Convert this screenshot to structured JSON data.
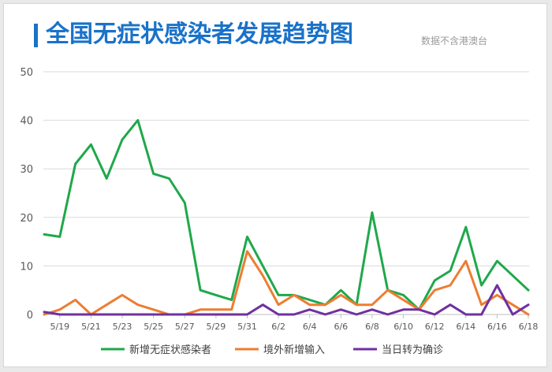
{
  "title": "全国无症状感染者发展趋势图",
  "note": "数据不含港澳台",
  "colors": {
    "accent": "#1a72c9",
    "green": "#1fa84a",
    "orange": "#ed7d31",
    "purple": "#7030a0",
    "grid": "#d9d9d9"
  },
  "chart_data": {
    "type": "line",
    "x": [
      "5/18",
      "5/19",
      "5/20",
      "5/21",
      "5/22",
      "5/23",
      "5/24",
      "5/25",
      "5/26",
      "5/27",
      "5/28",
      "5/29",
      "5/30",
      "5/31",
      "6/1",
      "6/2",
      "6/3",
      "6/4",
      "6/5",
      "6/6",
      "6/7",
      "6/8",
      "6/9",
      "6/10",
      "6/11",
      "6/12",
      "6/13",
      "6/14",
      "6/15",
      "6/16",
      "6/17",
      "6/18"
    ],
    "tick_labels": [
      "5/19",
      "5/21",
      "5/23",
      "5/25",
      "5/27",
      "5/29",
      "5/31",
      "6/2",
      "6/4",
      "6/6",
      "6/8",
      "6/10",
      "6/12",
      "6/14",
      "6/16",
      "6/18"
    ],
    "ylim": [
      0,
      50
    ],
    "yticks": [
      0,
      10,
      20,
      30,
      40,
      50
    ],
    "grid": true,
    "legend_position": "bottom",
    "series": [
      {
        "name": "新增无症状感染者",
        "color": "#1fa84a",
        "values": [
          16.5,
          16,
          31,
          35,
          28,
          36,
          40,
          29,
          28,
          23,
          5,
          4,
          3,
          16,
          10,
          4,
          4,
          3,
          2,
          5,
          2,
          21,
          5,
          4,
          1,
          7,
          9,
          18,
          6,
          11,
          8,
          5
        ]
      },
      {
        "name": "境外新增输入",
        "color": "#ed7d31",
        "values": [
          0,
          1,
          3,
          0,
          2,
          4,
          2,
          1,
          0,
          0,
          1,
          1,
          1,
          13,
          8,
          2,
          4,
          2,
          2,
          4,
          2,
          2,
          5,
          3,
          1,
          5,
          6,
          11,
          2,
          4,
          2,
          0
        ]
      },
      {
        "name": "当日转为确诊",
        "color": "#7030a0",
        "values": [
          0.5,
          0,
          0,
          0,
          0,
          0,
          0,
          0,
          0,
          0,
          0,
          0,
          0,
          0,
          2,
          0,
          0,
          1,
          0,
          1,
          0,
          1,
          0,
          1,
          1,
          0,
          2,
          0,
          0,
          6,
          0,
          2
        ]
      }
    ]
  }
}
